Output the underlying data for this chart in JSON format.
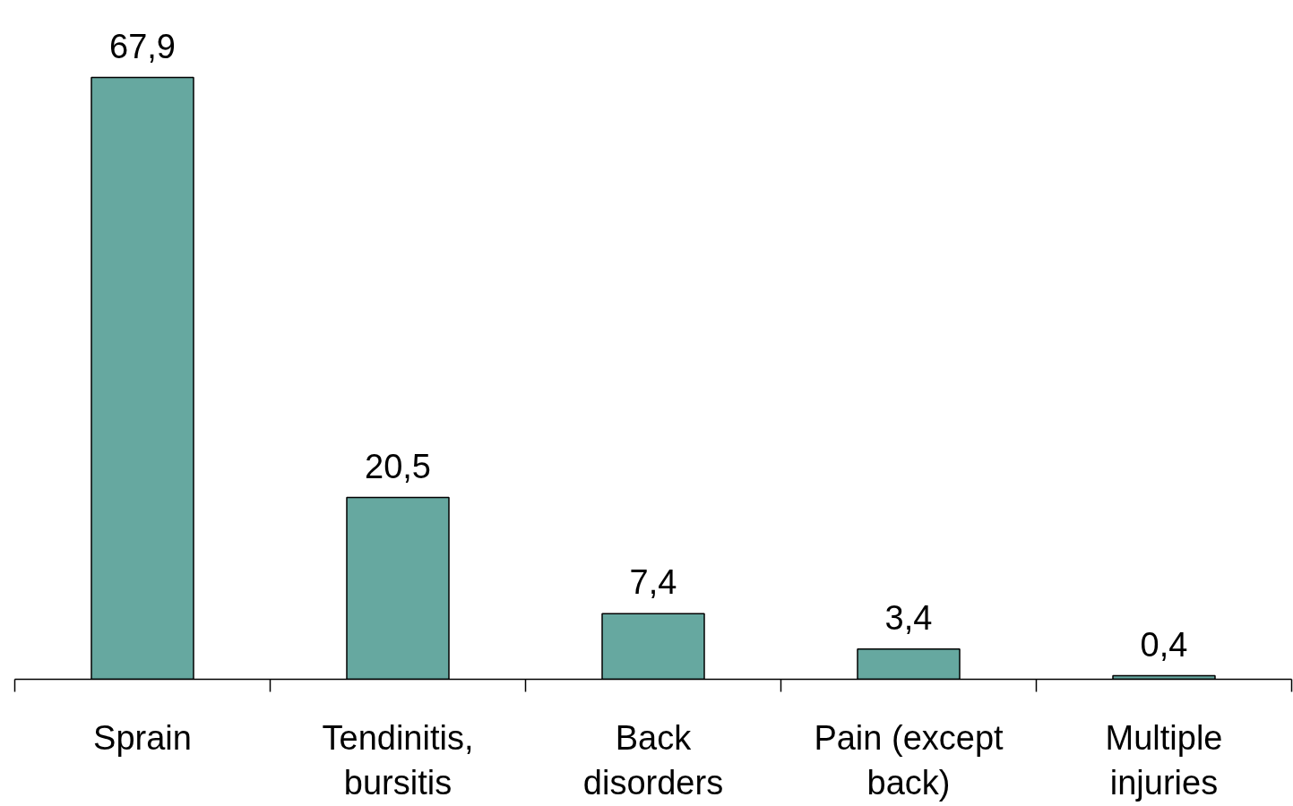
{
  "chart_data": {
    "type": "bar",
    "categories": [
      "Sprain",
      "Tendinitis,\nbursitis",
      "Back\ndisorders",
      "Pain (except\nback)",
      "Multiple\ninjuries"
    ],
    "values": [
      67.9,
      20.5,
      7.4,
      3.4,
      0.4
    ],
    "value_labels": [
      "67,9",
      "20,5",
      "7,4",
      "3,4",
      "0,4"
    ],
    "color": "#66a8a0",
    "grid": false,
    "tick_labels": "x"
  }
}
